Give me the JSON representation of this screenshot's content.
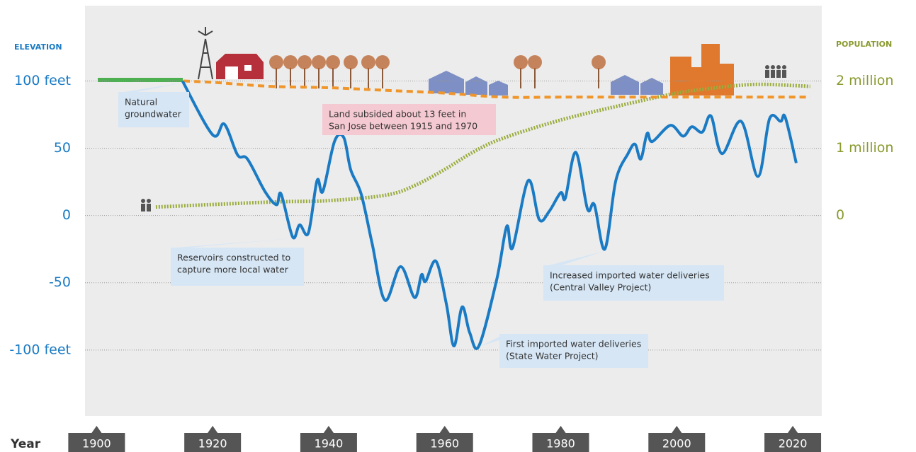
{
  "chart_data": {
    "type": "line",
    "xlabel": "Year",
    "ylabel": "ELEVATION",
    "y2label": "POPULATION",
    "xlim": [
      1898,
      2025
    ],
    "xticks": [
      1900,
      1920,
      1940,
      1960,
      1980,
      2000,
      2020
    ],
    "ylim": [
      -149,
      156
    ],
    "yticks": [
      {
        "value": 100,
        "label": "100 feet"
      },
      50,
      0,
      -50,
      {
        "value": -100,
        "label": "-100 feet"
      }
    ],
    "y2lim": [
      -2980000,
      3120000
    ],
    "y2ticks": [
      {
        "value": 2000000,
        "label": "2 million"
      },
      {
        "value": 1000000,
        "label": "1 million"
      },
      0
    ],
    "grid": true,
    "series": [
      {
        "color": "#1a7bc4",
        "style": "solid",
        "x": [
          1914.8,
          1920,
          1922,
          1924.3,
          1926,
          1929,
          1931,
          1931.8,
          1933.8,
          1935,
          1936.5,
          1938,
          1939,
          1941,
          1942.6,
          1943.8,
          1945.6,
          1947.5,
          1949.7,
          1952.4,
          1954.8,
          1956,
          1956.7,
          1958.5,
          1960.3,
          1961.6,
          1963,
          1964.3,
          1965.9,
          1969,
          1970.7,
          1971.7,
          1974.4,
          1976.3,
          1978,
          1980,
          1980.8,
          1982.6,
          1984.6,
          1985.8,
          1987.6,
          1989.5,
          1991.6,
          1992.8,
          1993.8,
          1994.9,
          1995.8,
          1998.9,
          2001.1,
          2002.6,
          2004.4,
          2005.9,
          2007.8,
          2011.1,
          2014,
          2016,
          2017.9,
          2018.7,
          2020.6
        ],
        "values": [
          100,
          60,
          68,
          45,
          42,
          18,
          8,
          16,
          -16,
          -7,
          -13,
          26,
          18,
          55,
          58,
          34,
          16,
          -21,
          -63,
          -38,
          -61,
          -44,
          -49,
          -34,
          -66,
          -97,
          -68,
          -87,
          -97,
          -47,
          -8,
          -24,
          26,
          -3,
          3,
          17,
          13,
          47,
          5,
          8,
          -25,
          26,
          46,
          53,
          42,
          61,
          55,
          67,
          59,
          66,
          62,
          74,
          46,
          70,
          29,
          72,
          70,
          73,
          39
        ]
      },
      {
        "color": "#f0952a",
        "style": "dashed",
        "x": [
          1915,
          1920,
          1930,
          1940,
          1950,
          1960,
          1970,
          1980,
          2000,
          2023
        ],
        "values": [
          100,
          99,
          96,
          95,
          93,
          91,
          88,
          88,
          88,
          88
        ]
      },
      {
        "color": "#9aac3c",
        "style": "dotted",
        "axis": "y2",
        "x": [
          1910.2,
          1930,
          1940,
          1950,
          1955,
          1960,
          1965,
          1970,
          1980,
          1990,
          2000,
          2005,
          2010,
          2015,
          2023
        ],
        "values": [
          126000,
          200000,
          221000,
          305000,
          453000,
          684000,
          947000,
          1147000,
          1420000,
          1630000,
          1820000,
          1880000,
          1930000,
          1950000,
          1920000
        ]
      }
    ],
    "annotations": [
      {
        "lines": [
          "Natural",
          "groundwater"
        ]
      },
      {
        "lines": [
          "Land subsided about 13 feet in",
          "San Jose between 1915 and 1970"
        ]
      },
      {
        "lines": [
          "Reservoirs constructed to",
          "capture more local water"
        ]
      },
      {
        "lines": [
          "Increased imported water deliveries",
          "(Central Valley Project)"
        ]
      },
      {
        "lines": [
          "First imported water deliveries",
          "(State Water Project)"
        ]
      }
    ]
  }
}
